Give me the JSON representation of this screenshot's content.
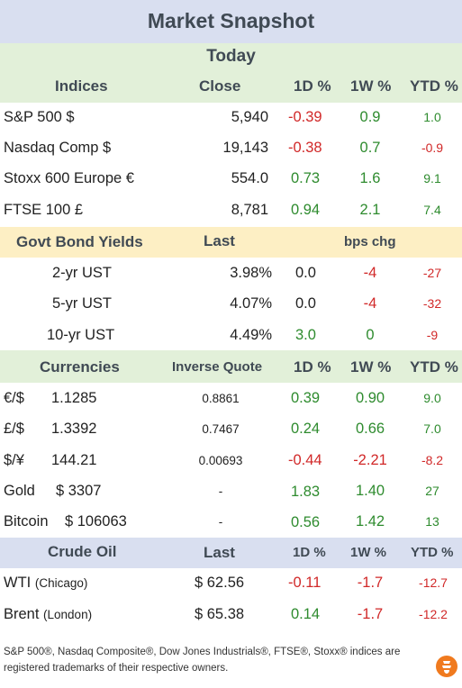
{
  "title": "Market Snapshot",
  "today_label": "Today",
  "indices": {
    "headers": [
      "Indices",
      "Close",
      "1D %",
      "1W %",
      "YTD %"
    ],
    "rows": [
      {
        "name": "S&P 500  $",
        "close": "5,940",
        "d1": "-0.39",
        "w1": "0.9",
        "ytd": "1.0"
      },
      {
        "name": "Nasdaq Comp  $",
        "close": "19,143",
        "d1": "-0.38",
        "w1": "0.7",
        "ytd": "-0.9"
      },
      {
        "name": "Stoxx 600 Europe  €",
        "close": "554.0",
        "d1": "0.73",
        "w1": "1.6",
        "ytd": "9.1"
      },
      {
        "name": "FTSE 100  £",
        "close": "8,781",
        "d1": "0.94",
        "w1": "2.1",
        "ytd": "7.4"
      }
    ]
  },
  "bonds": {
    "headers": [
      "Govt Bond Yields",
      "Last",
      "bps chg"
    ],
    "rows": [
      {
        "name": "2-yr UST",
        "last": "3.98%",
        "d1": "0.0",
        "w1": "-4",
        "ytd": "-27"
      },
      {
        "name": "5-yr UST",
        "last": "4.07%",
        "d1": "0.0",
        "w1": "-4",
        "ytd": "-32"
      },
      {
        "name": "10-yr UST",
        "last": "4.49%",
        "d1": "3.0",
        "w1": "0",
        "ytd": "-9"
      }
    ]
  },
  "currencies": {
    "headers": [
      "Currencies",
      "Inverse Quote",
      "1D %",
      "1W %",
      "YTD %"
    ],
    "rows": [
      {
        "name": "€/$",
        "price": "1.1285",
        "inverse": "0.8861",
        "d1": "0.39",
        "w1": "0.90",
        "ytd": "9.0"
      },
      {
        "name": "£/$",
        "price": "1.3392",
        "inverse": "0.7467",
        "d1": "0.24",
        "w1": "0.66",
        "ytd": "7.0"
      },
      {
        "name": "$/¥",
        "price": "144.21",
        "inverse": "0.00693",
        "d1": "-0.44",
        "w1": "-2.21",
        "ytd": "-8.2"
      },
      {
        "name": "Gold",
        "price": "$ 3307",
        "inverse": "-",
        "d1": "1.83",
        "w1": "1.40",
        "ytd": "27"
      },
      {
        "name": "Bitcoin",
        "price": "$ 106063",
        "inverse": "-",
        "d1": "0.56",
        "w1": "1.42",
        "ytd": "13"
      }
    ]
  },
  "crude": {
    "headers": [
      "Crude Oil",
      "Last",
      "1D %",
      "1W %",
      "YTD %"
    ],
    "rows": [
      {
        "name": "WTI",
        "loc": "(Chicago)",
        "last": "$ 62.56",
        "d1": "-0.11",
        "w1": "-1.7",
        "ytd": "-12.7"
      },
      {
        "name": "Brent",
        "loc": "(London)",
        "last": "$ 65.38",
        "d1": "0.14",
        "w1": "-1.7",
        "ytd": "-12.2"
      }
    ]
  },
  "footer": "S&P 500®, Nasdaq Composite®, Dow Jones Industrials®, FTSE®, Stoxx® indices are registered trademarks of their respective owners.",
  "colors": {
    "positive": "#2e8b2e",
    "negative": "#d12828",
    "title_band": "#d9dff0",
    "green_band": "#e2f0d9",
    "yellow_band": "#fdefc4"
  },
  "logo_icon": "flame-logo-icon"
}
